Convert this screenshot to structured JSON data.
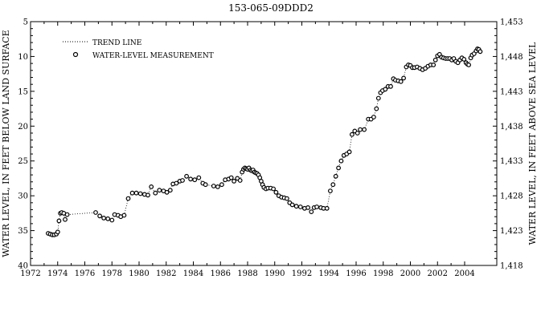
{
  "chart_data": {
    "type": "scatter",
    "title": "153-065-09DDD2",
    "ylabel_left": "WATER LEVEL, IN FEET BELOW LAND SURFACE",
    "ylabel_right": "WATER LEVEL, IN FEET ABOVE SEA LEVEL",
    "xlim": [
      1972,
      2004.3
    ],
    "ylim_left": [
      5,
      40
    ],
    "left_axis_inverted": true,
    "ylim_right": [
      1418,
      1453
    ],
    "x_ticks": [
      1972,
      1974,
      1976,
      1978,
      1980,
      1982,
      1984,
      1986,
      1988,
      1990,
      1992,
      1994,
      1996,
      1998,
      2000,
      2002,
      2004
    ],
    "x_tick_labels": [
      "1972",
      "1974",
      "1976",
      "1978",
      "1980",
      "1982",
      "1984",
      "1986",
      "1988",
      "1990",
      "1992",
      "1994",
      "1996",
      "1998",
      "2000",
      "2002",
      "2004"
    ],
    "y_left_ticks": [
      5,
      10,
      15,
      20,
      25,
      30,
      35,
      40
    ],
    "y_left_tick_labels": [
      "5",
      "10",
      "15",
      "20",
      "25",
      "30",
      "35",
      "40"
    ],
    "y_right_ticks": [
      1453,
      1448,
      1443,
      1438,
      1433,
      1428,
      1423,
      1418
    ],
    "y_right_tick_labels": [
      "1,453",
      "1,448",
      "1,443",
      "1,438",
      "1,433",
      "1,428",
      "1,423",
      "1,418"
    ],
    "legend": {
      "position": "top-left",
      "items": [
        {
          "label": "TREND LINE",
          "style": "dotted-line"
        },
        {
          "label": "WATER-LEVEL MEASUREMENT",
          "style": "open-circle"
        }
      ]
    },
    "grid": false,
    "series": [
      {
        "name": "WATER-LEVEL MEASUREMENT",
        "points": [
          [
            1973.3,
            35.4
          ],
          [
            1973.45,
            35.5
          ],
          [
            1973.6,
            35.6
          ],
          [
            1973.75,
            35.6
          ],
          [
            1973.9,
            35.5
          ],
          [
            1974.0,
            35.2
          ],
          [
            1974.1,
            33.6
          ],
          [
            1974.2,
            32.5
          ],
          [
            1974.3,
            32.4
          ],
          [
            1974.45,
            32.5
          ],
          [
            1974.55,
            33.4
          ],
          [
            1974.7,
            32.7
          ],
          [
            1976.8,
            32.4
          ],
          [
            1977.1,
            32.9
          ],
          [
            1977.4,
            33.2
          ],
          [
            1977.7,
            33.3
          ],
          [
            1978.0,
            33.5
          ],
          [
            1978.2,
            32.7
          ],
          [
            1978.45,
            32.8
          ],
          [
            1978.65,
            33.0
          ],
          [
            1978.9,
            32.8
          ],
          [
            1979.2,
            30.4
          ],
          [
            1979.5,
            29.6
          ],
          [
            1979.8,
            29.6
          ],
          [
            1980.1,
            29.7
          ],
          [
            1980.4,
            29.8
          ],
          [
            1980.65,
            29.9
          ],
          [
            1980.9,
            28.7
          ],
          [
            1981.2,
            29.6
          ],
          [
            1981.5,
            29.2
          ],
          [
            1981.8,
            29.3
          ],
          [
            1982.05,
            29.5
          ],
          [
            1982.3,
            29.2
          ],
          [
            1982.5,
            28.3
          ],
          [
            1982.75,
            28.2
          ],
          [
            1983.0,
            27.9
          ],
          [
            1983.2,
            27.8
          ],
          [
            1983.5,
            27.2
          ],
          [
            1983.8,
            27.6
          ],
          [
            1984.1,
            27.7
          ],
          [
            1984.4,
            27.4
          ],
          [
            1984.7,
            28.2
          ],
          [
            1984.9,
            28.4
          ],
          [
            1985.5,
            28.6
          ],
          [
            1985.8,
            28.7
          ],
          [
            1986.1,
            28.4
          ],
          [
            1986.35,
            27.7
          ],
          [
            1986.6,
            27.6
          ],
          [
            1986.8,
            27.4
          ],
          [
            1987.0,
            27.9
          ],
          [
            1987.25,
            27.5
          ],
          [
            1987.45,
            27.8
          ],
          [
            1987.6,
            26.6
          ],
          [
            1987.7,
            26.2
          ],
          [
            1987.8,
            26.0
          ],
          [
            1987.9,
            26.1
          ],
          [
            1988.0,
            26.2
          ],
          [
            1988.1,
            26.0
          ],
          [
            1988.2,
            26.3
          ],
          [
            1988.3,
            26.4
          ],
          [
            1988.4,
            26.3
          ],
          [
            1988.5,
            26.6
          ],
          [
            1988.6,
            26.7
          ],
          [
            1988.7,
            26.8
          ],
          [
            1988.8,
            27.0
          ],
          [
            1988.9,
            27.4
          ],
          [
            1989.0,
            27.9
          ],
          [
            1989.1,
            28.4
          ],
          [
            1989.2,
            28.8
          ],
          [
            1989.35,
            29.0
          ],
          [
            1989.5,
            28.9
          ],
          [
            1989.7,
            28.9
          ],
          [
            1989.9,
            29.0
          ],
          [
            1990.1,
            29.5
          ],
          [
            1990.3,
            30.0
          ],
          [
            1990.5,
            30.2
          ],
          [
            1990.7,
            30.3
          ],
          [
            1990.9,
            30.4
          ],
          [
            1991.1,
            31.0
          ],
          [
            1991.3,
            31.3
          ],
          [
            1991.6,
            31.5
          ],
          [
            1991.9,
            31.6
          ],
          [
            1992.2,
            31.8
          ],
          [
            1992.45,
            31.7
          ],
          [
            1992.7,
            32.3
          ],
          [
            1992.9,
            31.7
          ],
          [
            1993.1,
            31.6
          ],
          [
            1993.4,
            31.7
          ],
          [
            1993.6,
            31.8
          ],
          [
            1993.85,
            31.8
          ],
          [
            1994.1,
            29.3
          ],
          [
            1994.3,
            28.4
          ],
          [
            1994.5,
            27.2
          ],
          [
            1994.7,
            26.0
          ],
          [
            1994.9,
            25.0
          ],
          [
            1995.1,
            24.2
          ],
          [
            1995.3,
            24.0
          ],
          [
            1995.5,
            23.7
          ],
          [
            1995.7,
            21.2
          ],
          [
            1995.9,
            20.7
          ],
          [
            1996.1,
            21.0
          ],
          [
            1996.3,
            20.5
          ],
          [
            1996.6,
            20.5
          ],
          [
            1996.9,
            19.0
          ],
          [
            1997.1,
            19.0
          ],
          [
            1997.3,
            18.7
          ],
          [
            1997.5,
            17.5
          ],
          [
            1997.65,
            16.0
          ],
          [
            1997.8,
            15.2
          ],
          [
            1997.95,
            14.9
          ],
          [
            1998.15,
            14.7
          ],
          [
            1998.35,
            14.3
          ],
          [
            1998.55,
            14.3
          ],
          [
            1998.75,
            13.2
          ],
          [
            1998.9,
            13.4
          ],
          [
            1999.1,
            13.5
          ],
          [
            1999.3,
            13.6
          ],
          [
            1999.5,
            13.1
          ],
          [
            1999.7,
            11.5
          ],
          [
            1999.85,
            11.2
          ],
          [
            2000.0,
            11.3
          ],
          [
            2000.15,
            11.6
          ],
          [
            2000.3,
            11.6
          ],
          [
            2000.5,
            11.5
          ],
          [
            2000.7,
            11.7
          ],
          [
            2000.9,
            11.9
          ],
          [
            2001.1,
            11.7
          ],
          [
            2001.3,
            11.4
          ],
          [
            2001.5,
            11.2
          ],
          [
            2001.7,
            11.2
          ],
          [
            2001.85,
            10.5
          ],
          [
            2002.0,
            9.9
          ],
          [
            2002.15,
            9.7
          ],
          [
            2002.3,
            10.1
          ],
          [
            2002.45,
            10.2
          ],
          [
            2002.6,
            10.3
          ],
          [
            2002.75,
            10.3
          ],
          [
            2002.9,
            10.3
          ],
          [
            2003.05,
            10.5
          ],
          [
            2003.2,
            10.3
          ],
          [
            2003.35,
            10.7
          ],
          [
            2003.5,
            10.9
          ],
          [
            2003.65,
            10.5
          ],
          [
            2003.8,
            10.2
          ],
          [
            2003.95,
            10.4
          ],
          [
            2004.1,
            10.9
          ],
          [
            2004.2,
            11.1
          ],
          [
            2004.3,
            11.2
          ],
          [
            2004.45,
            10.2
          ],
          [
            2004.55,
            9.8
          ],
          [
            2004.7,
            9.6
          ],
          [
            2004.85,
            9.2
          ],
          [
            2004.95,
            8.9
          ],
          [
            2005.05,
            9.0
          ],
          [
            2005.15,
            9.3
          ]
        ]
      }
    ]
  }
}
